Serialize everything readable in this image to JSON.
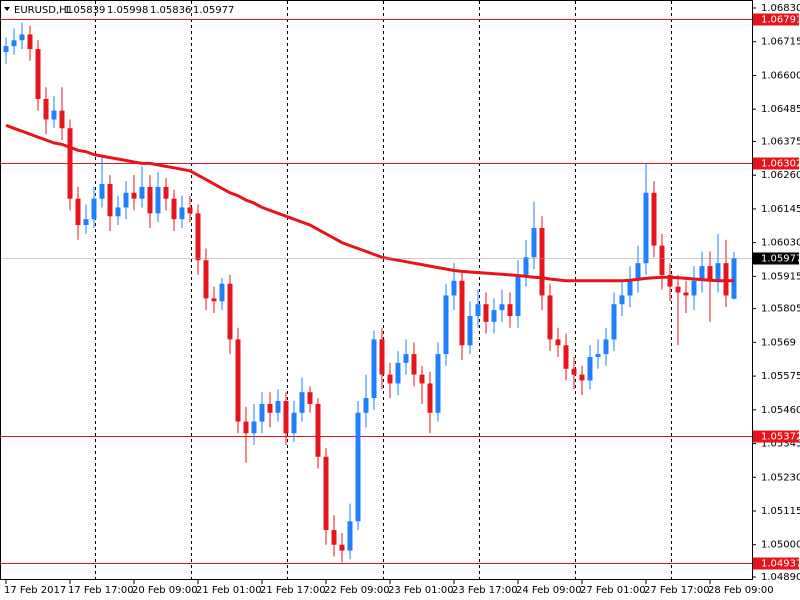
{
  "chart_data": {
    "type": "candlestick",
    "title": "EURUSD,H1",
    "categories": [
      "17 Feb 2017",
      null,
      null,
      null,
      null,
      null,
      null,
      null,
      "17 Feb 17:00",
      null,
      null,
      null,
      null,
      null,
      null,
      null,
      "20 Feb 09:00",
      null,
      null,
      null,
      null,
      null,
      null,
      null,
      "21 Feb 01:00",
      null,
      null,
      null,
      null,
      null,
      null,
      null,
      "21 Feb 17:00",
      null,
      null,
      null,
      null,
      null,
      null,
      null,
      "22 Feb 09:00",
      null,
      null,
      null,
      null,
      null,
      null,
      null,
      "23 Feb 01:00",
      null,
      null,
      null,
      null,
      null,
      null,
      null,
      "23 Feb 17:00",
      null,
      null,
      null,
      null,
      null,
      null,
      null,
      "24 Feb 09:00",
      null,
      null,
      null,
      null,
      null,
      null,
      null,
      "27 Feb 01:00",
      null,
      null,
      null,
      null,
      null,
      null,
      null,
      "27 Feb 17:00",
      null,
      null,
      null,
      null,
      null,
      null,
      null,
      "28 Feb 09:00",
      null,
      null,
      null
    ],
    "open": [
      1.0668,
      1.067,
      1.0672,
      1.0674,
      1.0669,
      1.0652,
      1.0645,
      1.0648,
      1.0642,
      1.0618,
      1.0609,
      1.0611,
      1.0618,
      1.0623,
      1.0612,
      1.0615,
      1.062,
      1.0618,
      1.0622,
      1.0613,
      1.0622,
      1.0618,
      1.0611,
      1.0615,
      1.0613,
      1.0597,
      1.0584,
      1.0583,
      1.0589,
      1.057,
      1.0542,
      1.0538,
      1.0542,
      1.0548,
      1.0545,
      1.0549,
      1.0538,
      1.0545,
      1.0552,
      1.0548,
      1.053,
      1.0505,
      1.05,
      1.0498,
      1.0508,
      1.0545,
      1.055,
      1.057,
      1.0558,
      1.0555,
      1.0562,
      1.0565,
      1.0558,
      1.0555,
      1.0545,
      1.0565,
      1.0585,
      1.059,
      1.0568,
      1.0578,
      1.0582,
      1.0576,
      1.058,
      1.0582,
      1.0578,
      1.0592,
      1.0598,
      1.0608,
      1.0585,
      1.057,
      1.0568,
      1.056,
      1.0558,
      1.0556,
      1.0564,
      1.0565,
      1.057,
      1.0582,
      1.0585,
      1.059,
      1.0596,
      1.062,
      1.0602,
      1.0592,
      1.0588,
      1.0586,
      1.0585,
      1.059,
      1.0595,
      1.059,
      1.0596,
      1.05839
    ],
    "high": [
      1.0673,
      1.0676,
      1.0678,
      1.0677,
      1.0672,
      1.0656,
      1.0653,
      1.0656,
      1.0645,
      1.0622,
      1.0616,
      1.0622,
      1.0632,
      1.0626,
      1.0619,
      1.0624,
      1.0626,
      1.0629,
      1.0626,
      1.0627,
      1.0625,
      1.0621,
      1.0619,
      1.0619,
      1.0616,
      1.0601,
      1.0588,
      1.0591,
      1.0592,
      1.0574,
      1.0547,
      1.0548,
      1.0552,
      1.0552,
      1.0553,
      1.0552,
      1.0549,
      1.0557,
      1.0554,
      1.055,
      1.0533,
      1.051,
      1.0504,
      1.0514,
      1.0549,
      1.0558,
      1.0573,
      1.0574,
      1.0562,
      1.0566,
      1.057,
      1.0569,
      1.0561,
      1.0559,
      1.0569,
      1.0589,
      1.0596,
      1.0593,
      1.0583,
      1.0587,
      1.0586,
      1.0584,
      1.0587,
      1.0586,
      1.0597,
      1.0604,
      1.0617,
      1.0612,
      1.0589,
      1.0574,
      1.0572,
      1.0564,
      1.0561,
      1.0568,
      1.057,
      1.0574,
      1.0586,
      1.059,
      1.0595,
      1.0602,
      1.063,
      1.0624,
      1.0606,
      1.0596,
      1.0592,
      1.059,
      1.0595,
      1.06,
      1.06,
      1.0606,
      1.0604,
      1.05998
    ],
    "low": [
      1.0664,
      1.0667,
      1.0669,
      1.0665,
      1.0648,
      1.064,
      1.0642,
      1.0638,
      1.0614,
      1.0604,
      1.0606,
      1.0608,
      1.0615,
      1.0607,
      1.0609,
      1.0611,
      1.0614,
      1.0615,
      1.0608,
      1.061,
      1.0614,
      1.0607,
      1.0608,
      1.061,
      1.0592,
      1.058,
      1.0579,
      1.058,
      1.0565,
      1.0538,
      1.0528,
      1.0534,
      1.0538,
      1.054,
      1.0542,
      1.0534,
      1.0535,
      1.0542,
      1.0545,
      1.0526,
      1.05,
      1.0496,
      1.0494,
      1.0495,
      1.0505,
      1.054,
      1.0546,
      1.0553,
      1.055,
      1.0551,
      1.0558,
      1.0554,
      1.0548,
      1.0538,
      1.0542,
      1.0561,
      1.058,
      1.0563,
      1.0565,
      1.0574,
      1.0572,
      1.0572,
      1.0576,
      1.0574,
      1.0574,
      1.0588,
      1.0594,
      1.058,
      1.0566,
      1.0564,
      1.0556,
      1.0553,
      1.0551,
      1.0553,
      1.056,
      1.0561,
      1.0566,
      1.0578,
      1.0581,
      1.0586,
      1.0592,
      1.0598,
      1.0587,
      1.0583,
      1.0568,
      1.0579,
      1.058,
      1.0586,
      1.0576,
      1.0586,
      1.0581,
      1.05836
    ],
    "close": [
      1.067,
      1.0672,
      1.0674,
      1.0669,
      1.0652,
      1.0645,
      1.0648,
      1.0642,
      1.0618,
      1.0609,
      1.0611,
      1.0618,
      1.0623,
      1.0612,
      1.0615,
      1.062,
      1.0618,
      1.0622,
      1.0613,
      1.0622,
      1.0618,
      1.0611,
      1.0615,
      1.0613,
      1.0597,
      1.0584,
      1.0583,
      1.0589,
      1.057,
      1.0542,
      1.0538,
      1.0542,
      1.0548,
      1.0545,
      1.0549,
      1.0538,
      1.0545,
      1.0552,
      1.0548,
      1.053,
      1.0505,
      1.05,
      1.0498,
      1.0508,
      1.0545,
      1.055,
      1.057,
      1.0558,
      1.0555,
      1.0562,
      1.0565,
      1.0558,
      1.0555,
      1.0545,
      1.0565,
      1.0585,
      1.059,
      1.0568,
      1.0578,
      1.0582,
      1.0576,
      1.058,
      1.0582,
      1.0578,
      1.0592,
      1.0598,
      1.0608,
      1.0585,
      1.057,
      1.0568,
      1.056,
      1.0558,
      1.0556,
      1.0564,
      1.0565,
      1.057,
      1.0582,
      1.0585,
      1.059,
      1.0596,
      1.062,
      1.0602,
      1.0592,
      1.0588,
      1.0586,
      1.0585,
      1.059,
      1.0595,
      1.059,
      1.0596,
      1.0585,
      1.05977
    ],
    "ma": [
      1.0643,
      1.0642,
      1.0641,
      1.064,
      1.0639,
      1.0638,
      1.0637,
      1.06365,
      1.06355,
      1.06345,
      1.0634,
      1.0633,
      1.06325,
      1.0632,
      1.06315,
      1.0631,
      1.06305,
      1.063,
      1.063,
      1.06295,
      1.0629,
      1.06285,
      1.0628,
      1.06275,
      1.0626,
      1.06245,
      1.0623,
      1.06215,
      1.062,
      1.0619,
      1.06175,
      1.06165,
      1.0615,
      1.0614,
      1.0613,
      1.0612,
      1.0611,
      1.061,
      1.0609,
      1.06075,
      1.0606,
      1.06045,
      1.0603,
      1.0602,
      1.0601,
      1.06,
      1.0599,
      1.0598,
      1.05975,
      1.0597,
      1.05965,
      1.0596,
      1.05955,
      1.0595,
      1.05945,
      1.0594,
      1.05935,
      1.05932,
      1.0593,
      1.05928,
      1.05926,
      1.05924,
      1.05922,
      1.0592,
      1.05918,
      1.05915,
      1.05912,
      1.0591,
      1.05906,
      1.05903,
      1.059,
      1.059,
      1.059,
      1.059,
      1.059,
      1.059,
      1.059,
      1.059,
      1.05902,
      1.05905,
      1.05908,
      1.0591,
      1.05912,
      1.05912,
      1.0591,
      1.05908,
      1.05906,
      1.05904,
      1.05902,
      1.059,
      1.059,
      1.059
    ],
    "up_color": "#1e7fff",
    "down_color": "#e8141b",
    "ma_color": "#e8141b",
    "hlines": [
      1.06791,
      1.06302,
      1.05372,
      1.04937
    ],
    "hline_color": "#e8141b",
    "ylim": [
      1.0489,
      1.0683
    ],
    "yticks": [
      {
        "value": 1.0683,
        "label": "1.06830"
      },
      1.06715,
      {
        "value": 1.066,
        "label": "1.06600"
      },
      1.06485,
      1.06375,
      {
        "value": 1.0626,
        "label": "1.06260"
      },
      1.06145,
      {
        "value": 1.0603,
        "label": "1.06030"
      },
      1.05915,
      1.05805,
      1.0569,
      1.05575,
      {
        "value": 1.0546,
        "label": "1.05460"
      },
      1.05345,
      {
        "value": 1.0523,
        "label": "1.05230"
      },
      1.05115,
      {
        "value": 1.05,
        "label": "1.05000"
      },
      {
        "value": 1.0489,
        "label": "1.04890"
      }
    ]
  }
}
